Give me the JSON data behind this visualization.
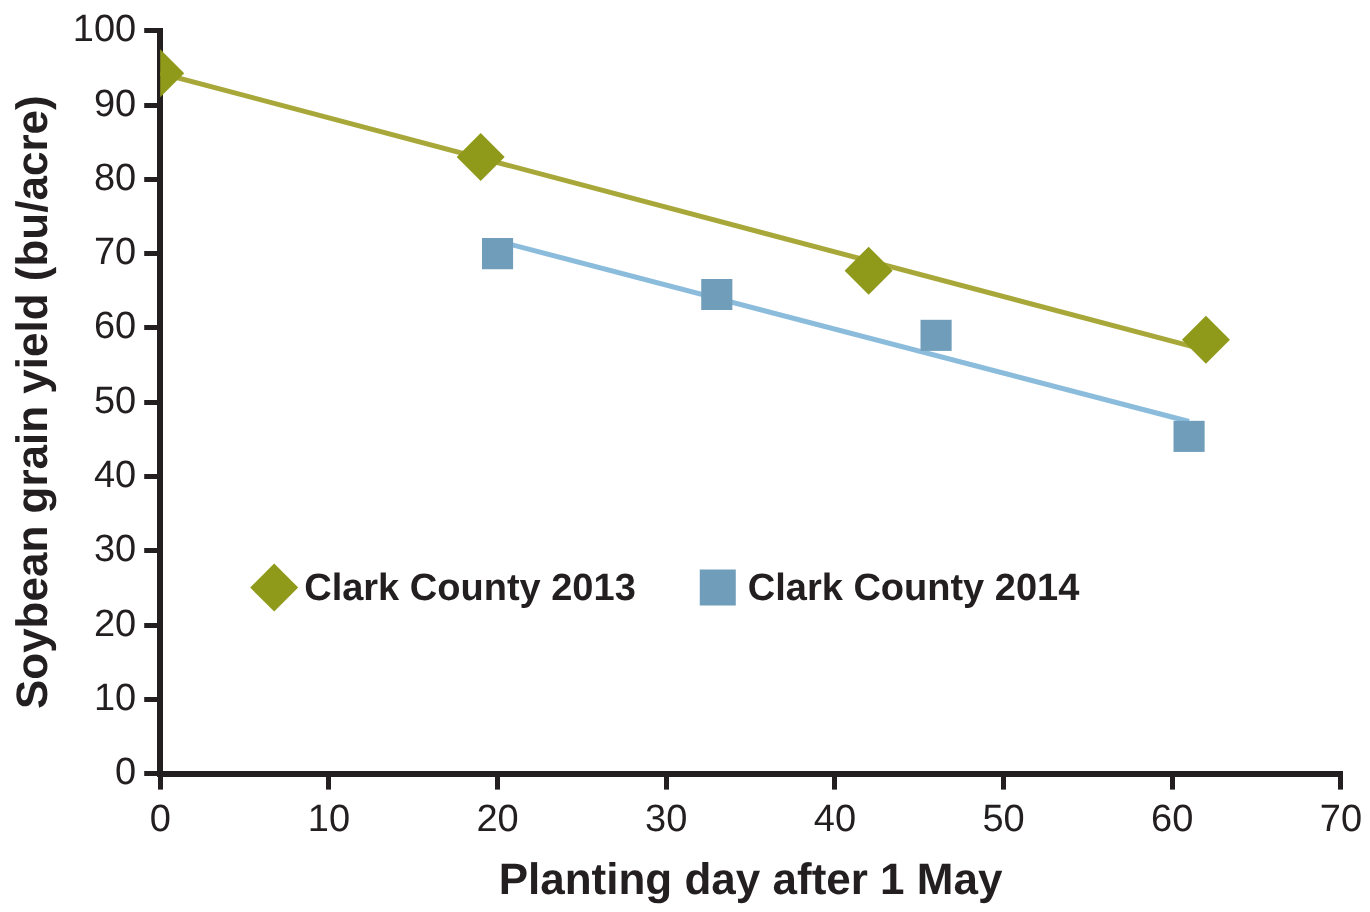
{
  "chart_data": {
    "type": "scatter",
    "xlabel": "Planting day after 1 May",
    "ylabel": "Soybean grain yield (bu/acre)",
    "xlim": [
      0,
      70
    ],
    "xticks": [
      0,
      10,
      20,
      30,
      40,
      50,
      60,
      70
    ],
    "ylim": [
      0,
      100
    ],
    "yticks": [
      0,
      10,
      20,
      30,
      40,
      50,
      60,
      70,
      80,
      90,
      100
    ],
    "grid": false,
    "legend": "bottom left",
    "series": [
      {
        "name": "Clark County 2013",
        "color": "#8f9a1a",
        "marker": "diamond",
        "x": [
          0,
          19,
          42,
          62
        ],
        "values": [
          94.3,
          83,
          67.7,
          58.4
        ]
      },
      {
        "name": "Clark County 2014",
        "color": "#6f9dba",
        "marker": "square",
        "x": [
          20,
          33,
          46,
          61
        ],
        "values": [
          70,
          64.5,
          59,
          45.4
        ]
      },
      {
        "type": "line",
        "color": "#a8a83a",
        "marker": "none",
        "x": [
          0,
          62
        ],
        "values": [
          94.3,
          57
        ]
      },
      {
        "type": "line",
        "color": "#8bbcdc",
        "marker": "none",
        "x": [
          20,
          61
        ],
        "values": [
          71.7,
          47.4
        ]
      }
    ]
  }
}
